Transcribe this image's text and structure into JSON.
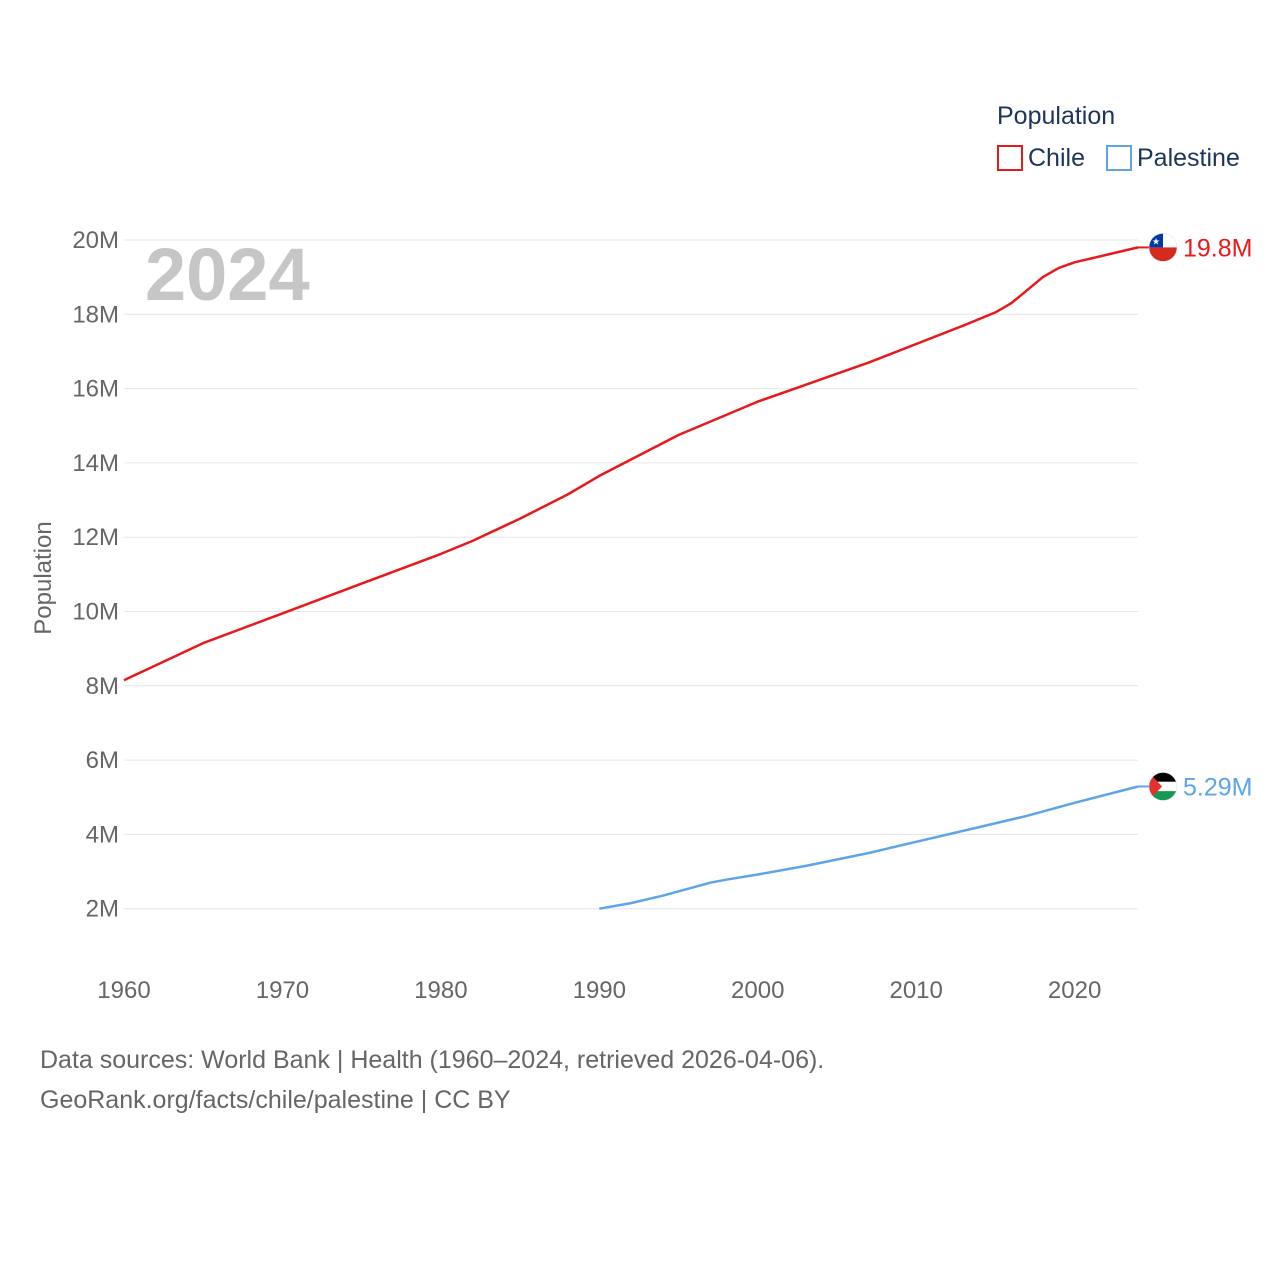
{
  "chart_data": {
    "type": "line",
    "ylabel": "Population",
    "year_label": "2024",
    "legend": {
      "title": "Population",
      "placement": "top-right"
    },
    "x_ticks": [
      "1960",
      "1970",
      "1980",
      "1990",
      "2000",
      "2010",
      "2020"
    ],
    "y_ticks": [
      {
        "value": 2000000,
        "label": "2M"
      },
      {
        "value": 4000000,
        "label": "4M"
      },
      {
        "value": 6000000,
        "label": "6M"
      },
      {
        "value": 8000000,
        "label": "8M"
      },
      {
        "value": 10000000,
        "label": "10M"
      },
      {
        "value": 12000000,
        "label": "12M"
      },
      {
        "value": 14000000,
        "label": "14M"
      },
      {
        "value": 16000000,
        "label": "16M"
      },
      {
        "value": 18000000,
        "label": "18M"
      },
      {
        "value": 20000000,
        "label": "20M"
      }
    ],
    "xlim": [
      1960,
      2024
    ],
    "ylim": [
      0,
      20000000
    ],
    "series": [
      {
        "name": "Chile",
        "color": "#e8191c",
        "end_label": "19.8M",
        "flag": "chile",
        "points": [
          [
            1960,
            8150000
          ],
          [
            1962,
            8550000
          ],
          [
            1965,
            9150000
          ],
          [
            1970,
            9950000
          ],
          [
            1975,
            10750000
          ],
          [
            1980,
            11550000
          ],
          [
            1982,
            11900000
          ],
          [
            1985,
            12500000
          ],
          [
            1988,
            13150000
          ],
          [
            1990,
            13650000
          ],
          [
            1995,
            14750000
          ],
          [
            2000,
            15650000
          ],
          [
            2003,
            16100000
          ],
          [
            2005,
            16400000
          ],
          [
            2007,
            16700000
          ],
          [
            2010,
            17200000
          ],
          [
            2013,
            17700000
          ],
          [
            2015,
            18050000
          ],
          [
            2016,
            18300000
          ],
          [
            2017,
            18650000
          ],
          [
            2018,
            19000000
          ],
          [
            2019,
            19250000
          ],
          [
            2020,
            19400000
          ],
          [
            2022,
            19600000
          ],
          [
            2024,
            19800000
          ]
        ]
      },
      {
        "name": "Palestine",
        "color": "#5da5e8",
        "end_label": "5.29M",
        "flag": "palestine",
        "points": [
          [
            1990,
            2000000
          ],
          [
            1992,
            2150000
          ],
          [
            1994,
            2350000
          ],
          [
            1997,
            2700000
          ],
          [
            1998,
            2780000
          ],
          [
            2000,
            2920000
          ],
          [
            2003,
            3150000
          ],
          [
            2007,
            3500000
          ],
          [
            2010,
            3800000
          ],
          [
            2014,
            4200000
          ],
          [
            2017,
            4500000
          ],
          [
            2020,
            4850000
          ],
          [
            2024,
            5290000
          ]
        ]
      }
    ],
    "flag_colors": {
      "chile_red": "#d52b1e",
      "chile_blue": "#0039a6",
      "palestine_black": "#000000",
      "palestine_green": "#149954",
      "palestine_red": "#e4312b"
    }
  },
  "footer": {
    "line1": "Data sources: World Bank | Health (1960–2024, retrieved 2026-04-06).",
    "line2": "GeoRank.org/facts/chile/palestine | CC BY"
  }
}
